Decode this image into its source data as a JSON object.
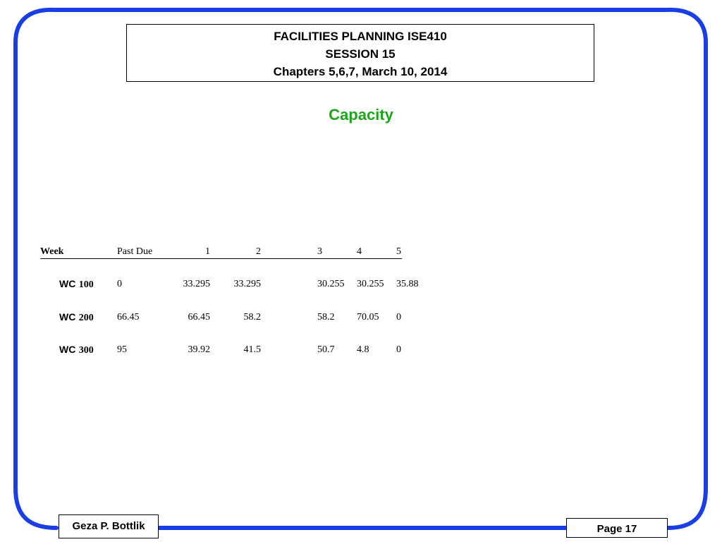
{
  "header": {
    "line1": "FACILITIES PLANNING ISE410",
    "line2": "SESSION 15",
    "line3": "Chapters 5,6,7, March 10, 2014"
  },
  "slide_title": "Capacity",
  "table": {
    "headers": [
      "Week",
      "Past Due",
      "1",
      "2",
      "3",
      "4",
      "5"
    ],
    "rows": [
      {
        "label_prefix": "WC",
        "label_num": "100",
        "values": [
          "0",
          "33.295",
          "33.295",
          "30.255",
          "30.255",
          "35.88"
        ]
      },
      {
        "label_prefix": "WC",
        "label_num": "200",
        "values": [
          "66.45",
          "66.45",
          "58.2",
          "58.2",
          "70.05",
          "0"
        ]
      },
      {
        "label_prefix": "WC",
        "label_num": "300",
        "values": [
          "95",
          "39.92",
          "41.5",
          "50.7",
          "4.8",
          "0"
        ]
      }
    ]
  },
  "footer": {
    "author": "Geza P. Bottlik",
    "page": "Page 17"
  },
  "colors": {
    "frame": "#1a3ee6",
    "title_green": "#1aa51a"
  }
}
